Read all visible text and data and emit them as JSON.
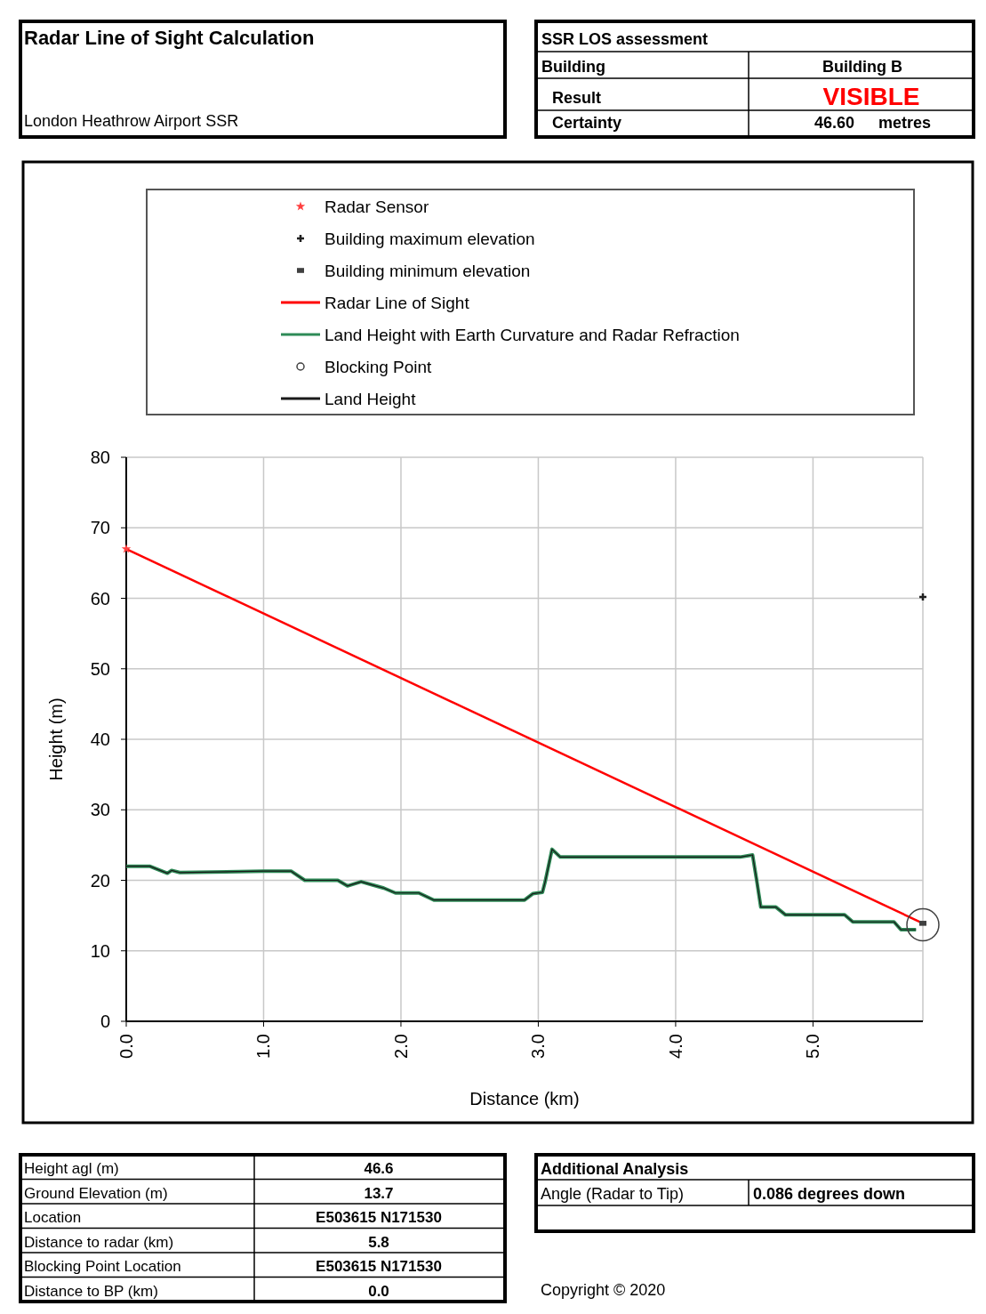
{
  "chart_data": {
    "type": "line",
    "title": "Radar Line of Sight Calculation",
    "subtitle": "London Heathrow Airport SSR",
    "xlabel": "Distance (km)",
    "ylabel": "Height (m)",
    "xlim": [
      0,
      5.8
    ],
    "xticks": [
      {
        "value": 0,
        "label": "0.0"
      },
      {
        "value": 1,
        "label": "1.0"
      },
      {
        "value": 2,
        "label": "2.0"
      },
      {
        "value": 3,
        "label": "3.0"
      },
      {
        "value": 4,
        "label": "4.0"
      },
      {
        "value": 5,
        "label": "5.0"
      }
    ],
    "ylim": [
      0,
      80
    ],
    "yticks": [
      0,
      10,
      20,
      30,
      40,
      50,
      60,
      70,
      80
    ],
    "grid": true,
    "legend": "top",
    "series": [
      {
        "name": "Radar Sensor",
        "type": "scatter",
        "marker": "star",
        "color": "#ff4040",
        "x": [
          0
        ],
        "values": [
          67
        ]
      },
      {
        "name": "Building maximum elevation",
        "type": "scatter",
        "marker": "cross",
        "color": "#202020",
        "x": [
          5.8
        ],
        "values": [
          60.2
        ]
      },
      {
        "name": "Building minimum elevation",
        "type": "scatter",
        "marker": "square",
        "color": "#404040",
        "x": [
          5.8
        ],
        "values": [
          13.9
        ]
      },
      {
        "name": "Radar Line of Sight",
        "type": "line",
        "color": "#ff0000",
        "x": [
          0,
          5.8
        ],
        "values": [
          67,
          13.9
        ]
      },
      {
        "name": "Land Height with Earth Curvature and Radar Refraction",
        "type": "line",
        "color": "#2e8b57",
        "x": [
          0,
          0.17,
          0.3,
          0.33,
          0.39,
          1.0,
          1.2,
          1.3,
          1.54,
          1.61,
          1.71,
          1.8,
          1.875,
          1.96,
          2.13,
          2.24,
          2.9,
          2.96,
          3.03,
          3.05,
          3.1,
          3.16,
          4.47,
          4.56,
          4.59,
          4.62,
          4.73,
          4.8,
          5.23,
          5.29,
          5.59,
          5.64,
          5.75
        ],
        "values": [
          22,
          22,
          21,
          21.4,
          21.1,
          21.3,
          21.3,
          20,
          20,
          19.2,
          19.8,
          19.3,
          18.9,
          18.2,
          18.2,
          17.2,
          17.2,
          18.1,
          18.3,
          19.8,
          24.4,
          23.3,
          23.3,
          23.6,
          20,
          16.2,
          16.2,
          15.1,
          15.1,
          14.1,
          14.1,
          13,
          13
        ]
      },
      {
        "name": "Blocking Point",
        "type": "scatter",
        "marker": "circle",
        "color": "#404040",
        "x": [
          5.8
        ],
        "values": [
          13.7
        ]
      },
      {
        "name": "Land Height",
        "type": "line",
        "color": "#1a1a1a",
        "x": [
          0,
          0.17,
          0.3,
          0.33,
          0.39,
          1.0,
          1.2,
          1.3,
          1.54,
          1.61,
          1.71,
          1.8,
          1.875,
          1.96,
          2.13,
          2.24,
          2.9,
          2.96,
          3.03,
          3.05,
          3.1,
          3.16,
          4.47,
          4.56,
          4.59,
          4.62,
          4.73,
          4.8,
          5.23,
          5.29,
          5.59,
          5.64,
          5.75
        ],
        "values": [
          22,
          22,
          21,
          21.4,
          21.1,
          21.3,
          21.3,
          20,
          20,
          19.2,
          19.8,
          19.3,
          18.9,
          18.2,
          18.2,
          17.2,
          17.2,
          18.1,
          18.3,
          19.8,
          24.4,
          23.3,
          23.3,
          23.6,
          20,
          16.2,
          16.2,
          15.1,
          15.1,
          14.1,
          14.1,
          13,
          13
        ]
      }
    ],
    "annotations": [
      "SSR LOS assessment",
      "Building",
      "Building B",
      "Result",
      "VISIBLE",
      "Certainty",
      "46.60",
      "metres",
      "Height agl (m)",
      "46.6",
      "Ground Elevation (m)",
      "13.7",
      "Location",
      "E503615 N171530",
      "Distance to radar (km)",
      "5.8",
      "Blocking Point Location",
      "E503615 N171530",
      "Distance to BP (km)",
      "0.0",
      "Additional Analysis",
      "Angle (Radar to Tip)",
      "0.086 degrees down",
      "Copyright © 2020"
    ]
  }
}
